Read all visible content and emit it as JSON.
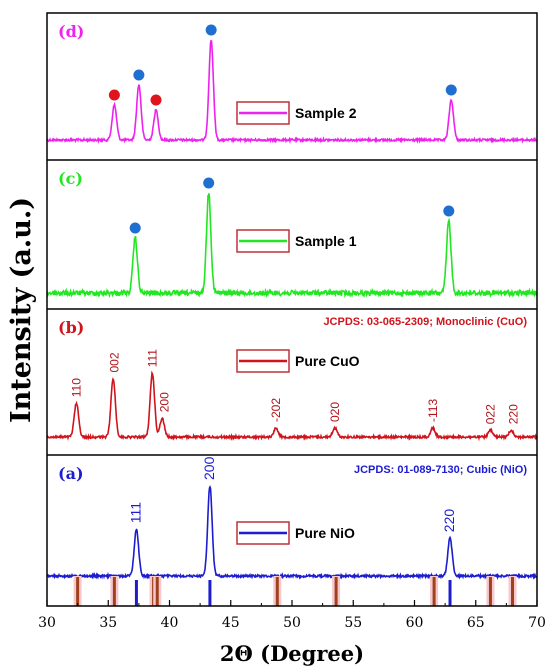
{
  "chart_data": {
    "type": "line",
    "xlabel": "2Θ (Degree)",
    "ylabel": "Intensity (a.u.)",
    "xlim": [
      30,
      70
    ],
    "xticks": [
      30,
      35,
      40,
      45,
      50,
      55,
      60,
      65,
      70
    ],
    "xtick_labels": [
      "30",
      "35",
      "40",
      "45",
      "50",
      "55",
      "60",
      "65",
      "70"
    ],
    "panels": [
      {
        "label": "(d)",
        "series_name": "Sample 2",
        "color": "#ee22ee",
        "peaks": [
          {
            "x": 35.5,
            "h": 0.35
          },
          {
            "x": 37.5,
            "h": 0.55
          },
          {
            "x": 38.9,
            "h": 0.3
          },
          {
            "x": 43.4,
            "h": 1.0
          },
          {
            "x": 63.0,
            "h": 0.4
          }
        ],
        "markers": [
          {
            "x": 35.5,
            "color": "#e0141c"
          },
          {
            "x": 37.5,
            "color": "#1e6fd0"
          },
          {
            "x": 38.9,
            "color": "#e0141c"
          },
          {
            "x": 43.4,
            "color": "#1e6fd0"
          },
          {
            "x": 63.0,
            "color": "#1e6fd0"
          }
        ]
      },
      {
        "label": "(c)",
        "series_name": "Sample 1",
        "color": "#22e622",
        "peaks": [
          {
            "x": 37.2,
            "h": 0.55
          },
          {
            "x": 43.2,
            "h": 1.0
          },
          {
            "x": 62.8,
            "h": 0.72
          }
        ],
        "markers": [
          {
            "x": 37.2,
            "color": "#1e6fd0"
          },
          {
            "x": 43.2,
            "color": "#1e6fd0"
          },
          {
            "x": 62.8,
            "color": "#1e6fd0"
          }
        ]
      },
      {
        "label": "(b)",
        "series_name": "Pure CuO",
        "color": "#d0141c",
        "jcpds": "JCPDS: 03-065-2309; Monoclinic (CuO)",
        "peaks": [
          {
            "x": 32.4,
            "h": 0.45
          },
          {
            "x": 35.4,
            "h": 0.78
          },
          {
            "x": 38.6,
            "h": 0.85
          },
          {
            "x": 39.4,
            "h": 0.25
          },
          {
            "x": 48.7,
            "h": 0.12
          },
          {
            "x": 53.5,
            "h": 0.12
          },
          {
            "x": 61.5,
            "h": 0.12
          },
          {
            "x": 66.2,
            "h": 0.09
          },
          {
            "x": 67.9,
            "h": 0.09
          }
        ],
        "hkl_labels": [
          {
            "x": 32.4,
            "text": "110"
          },
          {
            "x": 35.5,
            "text": "002"
          },
          {
            "x": 38.6,
            "text": "111"
          },
          {
            "x": 39.6,
            "text": "200"
          },
          {
            "x": 48.7,
            "text": "-202"
          },
          {
            "x": 53.5,
            "text": "020"
          },
          {
            "x": 61.5,
            "text": "-113"
          },
          {
            "x": 66.2,
            "text": "022"
          },
          {
            "x": 68.1,
            "text": "220"
          }
        ]
      },
      {
        "label": "(a)",
        "series_name": "Pure NiO",
        "color": "#1c1cd0",
        "jcpds": "JCPDS: 01-089-7130; Cubic (NiO)",
        "peaks": [
          {
            "x": 37.3,
            "h": 0.52
          },
          {
            "x": 43.3,
            "h": 1.0
          },
          {
            "x": 62.9,
            "h": 0.42
          }
        ],
        "hkl_labels": [
          {
            "x": 37.3,
            "text": "111"
          },
          {
            "x": 43.3,
            "text": "200"
          },
          {
            "x": 62.9,
            "text": "220"
          }
        ],
        "reference_lines": {
          "nio_blue": [
            37.3,
            43.3,
            62.9
          ],
          "cuo_brown": [
            32.5,
            35.5,
            38.7,
            39.0,
            48.8,
            53.6,
            61.6,
            66.2,
            68.0
          ]
        }
      }
    ]
  }
}
